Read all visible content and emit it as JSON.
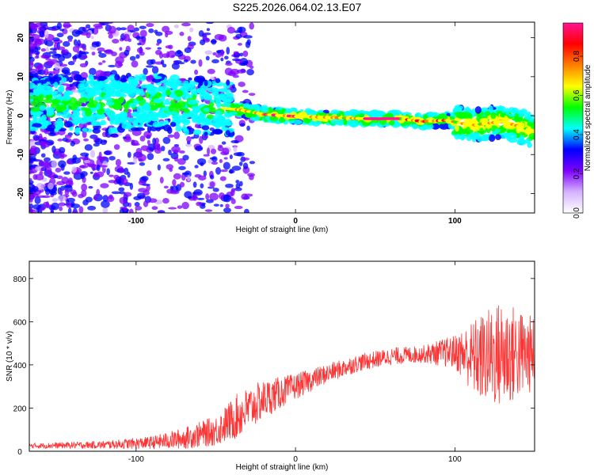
{
  "title": "S225.2026.064.02.13.E07",
  "chart_data": [
    {
      "type": "heatmap",
      "xlabel": "Height of straight line (km)",
      "ylabel": "Frequency (Hz)",
      "xlim": [
        -167,
        150
      ],
      "ylim": [
        -25,
        24
      ],
      "xticks": [
        -100,
        0,
        100
      ],
      "yticks": [
        -20,
        -10,
        0,
        10,
        20
      ],
      "colorbar": {
        "label": "Normalized spectral amplitude",
        "range": [
          0.0,
          0.97
        ],
        "ticks": [
          "0.0",
          "0.2",
          "0.4",
          "0.6",
          "0.8"
        ],
        "colors": [
          "#ffffff",
          "#d5b2ff",
          "#7f00ff",
          "#0000ff",
          "#00ffff",
          "#00ff00",
          "#ffff00",
          "#ff7f00",
          "#ff0000",
          "#ff1493"
        ]
      },
      "ridge": [
        {
          "x": -120,
          "freq": 3
        },
        {
          "x": -90,
          "freq": 3.5
        },
        {
          "x": -60,
          "freq": 2.5
        },
        {
          "x": -35,
          "freq": 1.5
        },
        {
          "x": -20,
          "freq": 0.3
        },
        {
          "x": 0,
          "freq": -0.2
        },
        {
          "x": 30,
          "freq": -0.6
        },
        {
          "x": 45,
          "freq": -0.8
        },
        {
          "x": 65,
          "freq": -0.8
        },
        {
          "x": 80,
          "freq": -1.5
        },
        {
          "x": 95,
          "freq": -1.2
        },
        {
          "x": 110,
          "freq": -2.5
        },
        {
          "x": 130,
          "freq": -1.5
        },
        {
          "x": 150,
          "freq": -4
        }
      ]
    },
    {
      "type": "line",
      "xlabel": "Height of straight line (km)",
      "ylabel": "SNR (10 * v/v)",
      "xlim": [
        -167,
        150
      ],
      "ylim": [
        0,
        880
      ],
      "xticks": [
        -100,
        0,
        100
      ],
      "yticks": [
        0,
        200,
        400,
        600,
        800
      ],
      "color": "#ff3333",
      "envelope": [
        {
          "x": -167,
          "mean": 25,
          "amp": 12
        },
        {
          "x": -120,
          "mean": 30,
          "amp": 18
        },
        {
          "x": -90,
          "mean": 40,
          "amp": 30
        },
        {
          "x": -70,
          "mean": 60,
          "amp": 50
        },
        {
          "x": -50,
          "mean": 95,
          "amp": 70
        },
        {
          "x": -35,
          "mean": 170,
          "amp": 110
        },
        {
          "x": -20,
          "mean": 240,
          "amp": 90
        },
        {
          "x": 0,
          "mean": 300,
          "amp": 60
        },
        {
          "x": 20,
          "mean": 360,
          "amp": 45
        },
        {
          "x": 40,
          "mean": 410,
          "amp": 40
        },
        {
          "x": 60,
          "mean": 440,
          "amp": 40
        },
        {
          "x": 80,
          "mean": 450,
          "amp": 40
        },
        {
          "x": 100,
          "mean": 460,
          "amp": 80
        },
        {
          "x": 115,
          "mean": 430,
          "amp": 200
        },
        {
          "x": 130,
          "mean": 450,
          "amp": 260
        },
        {
          "x": 150,
          "mean": 450,
          "amp": 170
        }
      ]
    }
  ]
}
